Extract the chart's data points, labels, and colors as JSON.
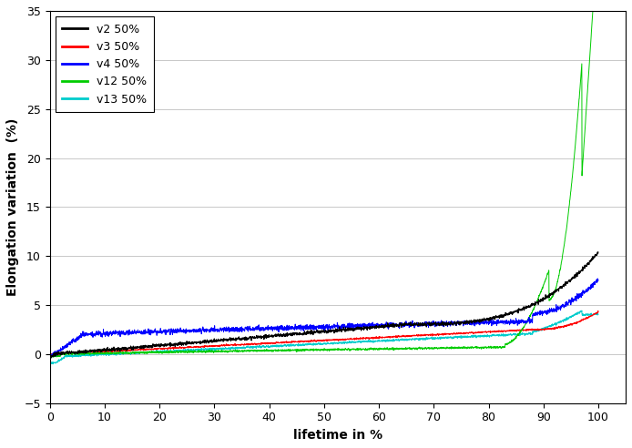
{
  "title": "",
  "xlabel": "lifetime in %",
  "ylabel": "Elongation variation  (%)",
  "xlim": [
    0,
    105
  ],
  "ylim": [
    -5,
    35
  ],
  "xticks": [
    0,
    10,
    20,
    30,
    40,
    50,
    60,
    70,
    80,
    90,
    100
  ],
  "yticks": [
    -5,
    0,
    5,
    10,
    15,
    20,
    25,
    30,
    35
  ],
  "series": [
    {
      "label": "v2 50%",
      "color": "#000000"
    },
    {
      "label": "v3 50%",
      "color": "#ff0000"
    },
    {
      "label": "v4 50%",
      "color": "#0000ff"
    },
    {
      "label": "v12 50%",
      "color": "#00cc00"
    },
    {
      "label": "v13 50%",
      "color": "#00cccc"
    }
  ],
  "background_color": "#ffffff",
  "grid_color": "#c8c8c8"
}
